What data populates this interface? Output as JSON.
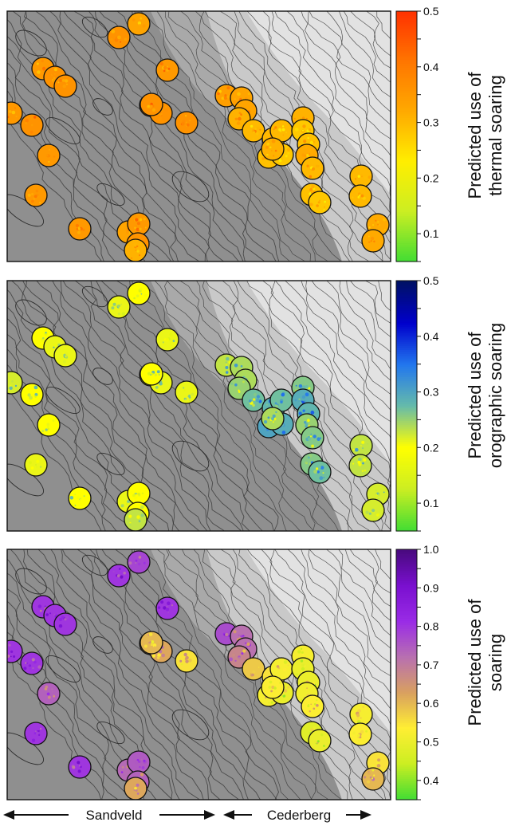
{
  "regions": {
    "sandveld": "Sandveld",
    "cederberg": "Cederberg"
  },
  "chart_data": [
    {
      "type": "heatmap",
      "panel": "top",
      "title": "",
      "colorbar": {
        "label_lines": [
          "Predicted use of",
          "thermal soaring"
        ],
        "range": [
          0.05,
          0.5
        ],
        "ticks": [
          0.1,
          0.2,
          0.3,
          0.4,
          0.5
        ],
        "tick_labels": [
          "0.1",
          "0.2",
          "0.3",
          "0.4",
          "0.5"
        ],
        "colors": [
          "#44dd33",
          "#ccee22",
          "#ffee00",
          "#ffaa00",
          "#ff7700",
          "#ff3300"
        ]
      },
      "site_values": [
        0.33,
        0.36,
        0.35,
        0.36,
        0.36,
        0.35,
        0.35,
        0.36,
        0.35,
        0.35,
        0.35,
        0.33,
        0.35,
        0.36,
        0.36,
        0.36,
        0.36,
        0.36,
        0.34,
        0.33,
        0.33,
        0.31,
        0.3,
        0.3,
        0.29,
        0.28,
        0.3,
        0.31,
        0.28,
        0.29,
        0.32,
        0.3,
        0.31,
        0.29,
        0.28,
        0.3,
        0.3,
        0.32,
        0.32,
        0.31
      ]
    },
    {
      "type": "heatmap",
      "panel": "middle",
      "title": "",
      "colorbar": {
        "label_lines": [
          "Predicted use of",
          "orographic soaring"
        ],
        "range": [
          0.05,
          0.5
        ],
        "ticks": [
          0.1,
          0.2,
          0.3,
          0.4,
          0.5
        ],
        "tick_labels": [
          "0.1",
          "0.2",
          "0.3",
          "0.4",
          "0.5"
        ],
        "colors": [
          "#44dd33",
          "#ccee22",
          "#ffff00",
          "#66bbaa",
          "#2277ee",
          "#0000cc",
          "#001166"
        ]
      },
      "site_values": [
        0.2,
        0.21,
        0.2,
        0.21,
        0.21,
        0.21,
        0.22,
        0.2,
        0.2,
        0.21,
        0.2,
        0.21,
        0.2,
        0.2,
        0.2,
        0.21,
        0.21,
        0.2,
        0.23,
        0.24,
        0.24,
        0.25,
        0.27,
        0.28,
        0.3,
        0.29,
        0.27,
        0.26,
        0.29,
        0.28,
        0.25,
        0.26,
        0.24,
        0.26,
        0.27,
        0.23,
        0.23,
        0.22,
        0.22,
        0.23
      ]
    },
    {
      "type": "heatmap",
      "panel": "bottom",
      "title": "",
      "colorbar": {
        "label_lines": [
          "Predicted use of",
          "soaring"
        ],
        "range": [
          0.35,
          1.0
        ],
        "ticks": [
          0.4,
          0.5,
          0.6,
          0.7,
          0.8,
          0.9,
          1.0
        ],
        "tick_labels": [
          "0.4",
          "0.5",
          "0.6",
          "0.7",
          "0.8",
          "0.9",
          "1.0"
        ],
        "colors": [
          "#44dd33",
          "#ccee22",
          "#ffee33",
          "#d9a060",
          "#b870b0",
          "#9a2ce6",
          "#7a10d0",
          "#4a0a80"
        ]
      },
      "site_values": [
        0.78,
        0.8,
        0.8,
        0.8,
        0.8,
        0.8,
        0.8,
        0.8,
        0.74,
        0.8,
        0.8,
        0.73,
        0.75,
        0.74,
        0.62,
        0.62,
        0.55,
        0.6,
        0.77,
        0.72,
        0.72,
        0.68,
        0.58,
        0.55,
        0.52,
        0.5,
        0.52,
        0.52,
        0.5,
        0.5,
        0.51,
        0.53,
        0.53,
        0.48,
        0.5,
        0.52,
        0.53,
        0.55,
        0.6,
        0.62
      ]
    }
  ]
}
